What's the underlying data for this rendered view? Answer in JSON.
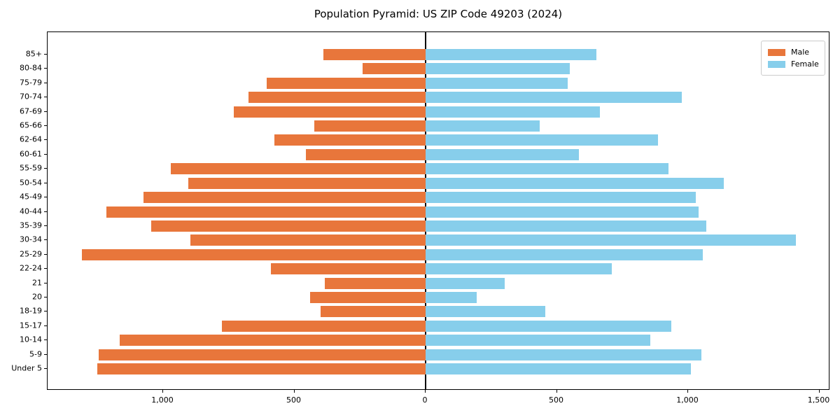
{
  "title": "Population Pyramid: US ZIP Code 49203 (2024)",
  "legend": {
    "male_label": "Male",
    "female_label": "Female"
  },
  "colors": {
    "male": "#E8763B",
    "female": "#87CEEB"
  },
  "x_axis": {
    "tick_labels": [
      "1,000",
      "500",
      "0",
      "500",
      "1,000",
      "1,500"
    ],
    "tick_values": [
      -1000,
      -500,
      0,
      500,
      1000,
      1500
    ]
  },
  "chart_data": {
    "type": "bar",
    "subtype": "population-pyramid",
    "orientation": "horizontal",
    "title": "Population Pyramid: US ZIP Code 49203 (2024)",
    "categories_top_to_bottom": [
      "85+",
      "80-84",
      "75-79",
      "70-74",
      "67-69",
      "65-66",
      "62-64",
      "60-61",
      "55-59",
      "50-54",
      "45-49",
      "40-44",
      "35-39",
      "30-34",
      "25-29",
      "22-24",
      "21",
      "20",
      "18-19",
      "15-17",
      "10-14",
      "5-9",
      "Under 5"
    ],
    "series": [
      {
        "name": "Male",
        "side": "left",
        "color": "#E8763B",
        "values": [
          390,
          240,
          605,
          675,
          730,
          425,
          575,
          455,
          970,
          905,
          1075,
          1215,
          1045,
          895,
          1310,
          590,
          385,
          440,
          400,
          775,
          1165,
          1245,
          1250
        ]
      },
      {
        "name": "Female",
        "side": "right",
        "color": "#87CEEB",
        "values": [
          650,
          550,
          540,
          975,
          665,
          435,
          885,
          585,
          925,
          1135,
          1030,
          1040,
          1070,
          1410,
          1055,
          710,
          300,
          195,
          455,
          935,
          855,
          1050,
          1010
        ]
      }
    ],
    "xlim": [
      -1440,
      1540
    ],
    "x_tick_labels": [
      "1,000",
      "500",
      "0",
      "500",
      "1,000",
      "1,500"
    ],
    "x_tick_values": [
      -1000,
      -500,
      0,
      500,
      1000,
      1500
    ],
    "grid": false,
    "legend_position": "upper right",
    "zero_line": true
  }
}
